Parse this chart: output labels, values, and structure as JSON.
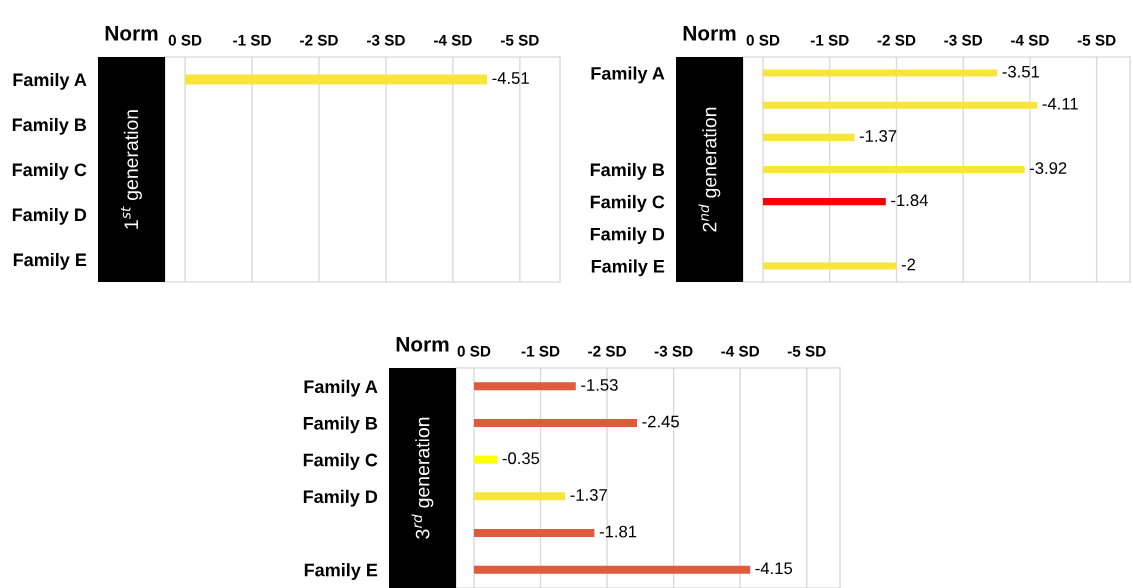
{
  "chart_data": [
    {
      "type": "bar",
      "orientation": "horizontal",
      "annotations": [
        "Norm",
        "1$^{st}$ generation"
      ],
      "categories": [
        "Family A",
        "Family B",
        "Family C",
        "Family D",
        "Family E"
      ],
      "values": [
        -4.51,
        null,
        null,
        null,
        null
      ],
      "colors": [
        "#f7e53b",
        "#f7e53b",
        "#f7e53b",
        "#f7e53b",
        "#f7e53b"
      ],
      "xlim": [
        0.3,
        -5.6
      ],
      "xticks": [
        {
          "value": 0,
          "label": "0 SD"
        },
        {
          "value": -1,
          "label": "-1 SD"
        },
        {
          "value": -2,
          "label": "-2 SD"
        },
        {
          "value": -3,
          "label": "-3 SD"
        },
        {
          "value": -4,
          "label": "-4 SD"
        },
        {
          "value": -5,
          "label": "-5 SD"
        }
      ],
      "grid": "x",
      "data_labels": true
    },
    {
      "type": "bar",
      "orientation": "horizontal",
      "annotations": [
        "Norm",
        "2$^{nd}$ generation"
      ],
      "categories": [
        "Family A",
        null,
        null,
        "Family B",
        "Family C",
        "Family D",
        "Family E"
      ],
      "values": [
        -3.51,
        -4.11,
        -1.37,
        -3.92,
        -1.84,
        null,
        -2
      ],
      "colors": [
        "#f7e53b",
        "#f7e53b",
        "#f7e53b",
        "#f7e53b",
        "#ff0000",
        "#f7e53b",
        "#f7e53b"
      ],
      "xlim": [
        0.3,
        -5.5
      ],
      "xticks": [
        {
          "value": 0,
          "label": "0 SD"
        },
        {
          "value": -1,
          "label": "-1 SD"
        },
        {
          "value": -2,
          "label": "-2 SD"
        },
        {
          "value": -3,
          "label": "-3 SD"
        },
        {
          "value": -4,
          "label": "-4 SD"
        },
        {
          "value": -5,
          "label": "-5 SD"
        }
      ],
      "grid": "x",
      "data_labels": true
    },
    {
      "type": "bar",
      "orientation": "horizontal",
      "annotations": [
        "Norm",
        "3$^{rd}$ generation"
      ],
      "categories": [
        "Family A",
        "Family B",
        "Family C",
        "Family D",
        null,
        "Family E"
      ],
      "values": [
        -1.53,
        -2.45,
        -0.35,
        -1.37,
        -1.81,
        -4.15
      ],
      "colors": [
        "#e05a3c",
        "#e05a3c",
        "#ffff00",
        "#f7e53b",
        "#e05a3c",
        "#e05a3c"
      ],
      "xlim": [
        0.27,
        -5.5
      ],
      "xticks": [
        {
          "value": 0,
          "label": "0 SD"
        },
        {
          "value": -1,
          "label": "-1 SD"
        },
        {
          "value": -2,
          "label": "-2 SD"
        },
        {
          "value": -3,
          "label": "-3 SD"
        },
        {
          "value": -4,
          "label": "-4 SD"
        },
        {
          "value": -5,
          "label": "-5 SD"
        }
      ],
      "grid": "x",
      "data_labels": true
    }
  ]
}
